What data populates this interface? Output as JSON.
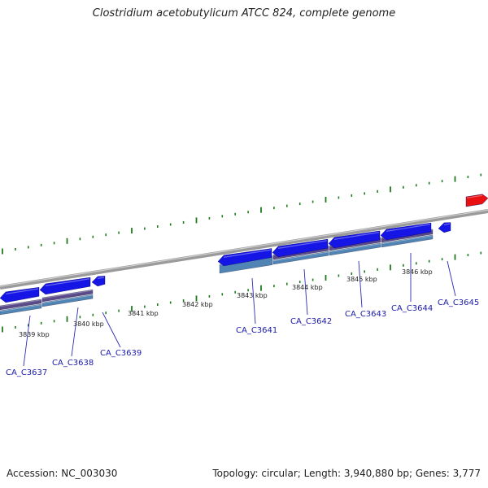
{
  "title": "Clostridium acetobutylicum ATCC 824, complete genome",
  "footer": {
    "accession": "Accession: NC_003030",
    "summary": "Topology: circular; Length: 3,940,880 bp; Genes: 3,777"
  },
  "colors": {
    "backbone": "#808080",
    "gene_forward": "#1515e6",
    "gene_reverse": "#e81010",
    "cds_band": "#5a4a8a",
    "protein_band": "#4f84b4",
    "tick": "#1e7a1e",
    "gene_label": "#1a1aa8"
  },
  "tick_labels": [
    "3839 kbp",
    "3840 kbp",
    "3841 kbp",
    "3842 kbp",
    "3843 kbp",
    "3844 kbp",
    "3845 kbp",
    "3846 kbp"
  ],
  "gene_labels": [
    "CA_C3637",
    "CA_C3638",
    "CA_C3639",
    "CA_C3641",
    "CA_C3642",
    "CA_C3643",
    "CA_C3644",
    "CA_C3645"
  ]
}
